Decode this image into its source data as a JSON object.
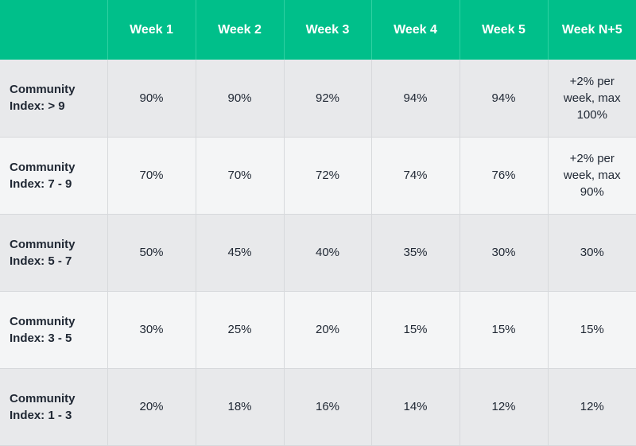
{
  "table": {
    "columns": [
      "Week 1",
      "Week 2",
      "Week 3",
      "Week 4",
      "Week 5",
      "Week N+5"
    ],
    "rows": [
      {
        "label": "Community Index: > 9",
        "cells": [
          "90%",
          "90%",
          "92%",
          "94%",
          "94%",
          "+2% per week, max 100%"
        ]
      },
      {
        "label": "Community Index: 7 - 9",
        "cells": [
          "70%",
          "70%",
          "72%",
          "74%",
          "76%",
          "+2% per week, max 90%"
        ]
      },
      {
        "label": "Community Index: 5 - 7",
        "cells": [
          "50%",
          "45%",
          "40%",
          "35%",
          "30%",
          "30%"
        ]
      },
      {
        "label": "Community Index: 3 - 5",
        "cells": [
          "30%",
          "25%",
          "20%",
          "15%",
          "15%",
          "15%"
        ]
      },
      {
        "label": "Community Index: 1 - 3",
        "cells": [
          "20%",
          "18%",
          "16%",
          "14%",
          "12%",
          "12%"
        ]
      }
    ]
  }
}
